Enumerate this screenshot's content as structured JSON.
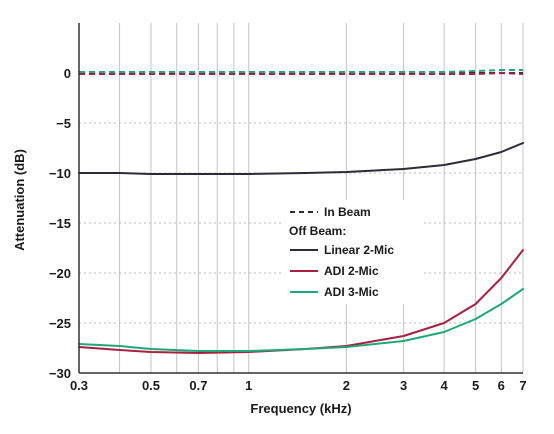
{
  "chart_data": {
    "type": "line",
    "xlabel": "Frequency (kHz)",
    "ylabel": "Attenuation (dB)",
    "x_scale": "log",
    "xlim": [
      0.3,
      7
    ],
    "ylim": [
      -30,
      5
    ],
    "x_ticks": [
      "0.3",
      "0.5",
      "0.7",
      "1",
      "2",
      "3",
      "4",
      "5",
      "6",
      "7"
    ],
    "y_ticks": [
      "0",
      "-5",
      "-10",
      "-15",
      "-20",
      "-25",
      "-30"
    ],
    "x_gridlines": [
      0.3,
      0.4,
      0.5,
      0.6,
      0.7,
      0.8,
      0.9,
      1,
      2,
      3,
      4,
      5,
      6,
      7
    ],
    "y_gridlines": [
      0,
      -5,
      -10,
      -15,
      -20,
      -25
    ],
    "grid": "vertical solid at log decade marks, horizontal dotted",
    "legend": {
      "placement": "center-right",
      "in_beam_label": "In Beam",
      "off_beam_heading": "Off Beam:"
    },
    "series": [
      {
        "name": "Linear 2-Mic",
        "color": "#2b2b3c",
        "x": [
          0.3,
          0.4,
          0.5,
          0.7,
          1,
          1.5,
          2,
          3,
          4,
          5,
          6,
          7
        ],
        "in_beam": [
          0.0,
          0.0,
          0.0,
          0.0,
          0.0,
          0.0,
          0.0,
          0.0,
          0.0,
          0.0,
          0.0,
          0.0
        ],
        "off_beam": [
          -10.0,
          -10.0,
          -10.1,
          -10.1,
          -10.1,
          -10.0,
          -9.9,
          -9.6,
          -9.2,
          -8.6,
          -7.9,
          -7.0
        ]
      },
      {
        "name": "ADI 2-Mic",
        "color": "#a8213f",
        "x": [
          0.3,
          0.4,
          0.5,
          0.7,
          1,
          1.5,
          2,
          3,
          4,
          5,
          6,
          7
        ],
        "in_beam": [
          -0.1,
          -0.1,
          -0.1,
          -0.1,
          -0.1,
          -0.1,
          -0.1,
          -0.1,
          -0.1,
          -0.1,
          0.0,
          -0.1
        ],
        "off_beam": [
          -27.4,
          -27.7,
          -27.9,
          -28.0,
          -27.9,
          -27.6,
          -27.3,
          -26.3,
          -25.0,
          -23.1,
          -20.5,
          -17.7
        ]
      },
      {
        "name": "ADI 3-Mic",
        "color": "#1fa87a",
        "x": [
          0.3,
          0.4,
          0.5,
          0.7,
          1,
          1.5,
          2,
          3,
          4,
          5,
          6,
          7
        ],
        "in_beam": [
          0.1,
          0.1,
          0.1,
          0.1,
          0.1,
          0.1,
          0.1,
          0.1,
          0.1,
          0.2,
          0.3,
          0.3
        ],
        "off_beam": [
          -27.1,
          -27.3,
          -27.6,
          -27.8,
          -27.8,
          -27.6,
          -27.4,
          -26.8,
          -25.9,
          -24.6,
          -23.1,
          -21.6
        ]
      }
    ]
  }
}
